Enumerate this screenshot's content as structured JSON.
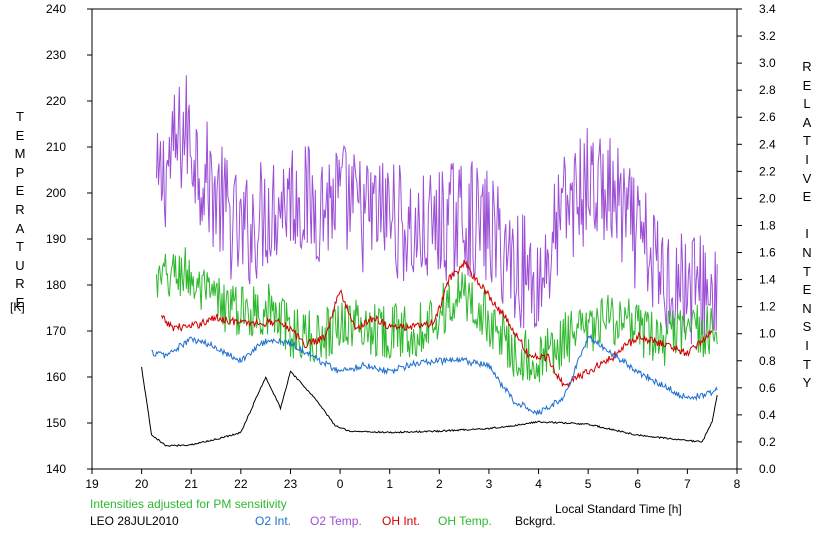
{
  "chart_data": {
    "type": "line",
    "title": "",
    "left_axis_label": "TEMPERATURE",
    "left_axis_unit": "[K]",
    "right_axis_label": "RELATIVE INTENSITY",
    "xlabel": "Local Standard Time [h]",
    "xlim": [
      19,
      8
    ],
    "x_ticks": [
      "19",
      "20",
      "21",
      "22",
      "23",
      "0",
      "1",
      "2",
      "3",
      "4",
      "5",
      "6",
      "7",
      "8"
    ],
    "y_left_lim": [
      140,
      240
    ],
    "y_left_ticks": [
      "140",
      "150",
      "160",
      "170",
      "180",
      "190",
      "200",
      "210",
      "220",
      "230",
      "240"
    ],
    "y_right_lim": [
      0.0,
      3.4
    ],
    "y_right_ticks": [
      "0.0",
      "0.2",
      "0.4",
      "0.6",
      "0.8",
      "1.0",
      "1.2",
      "1.4",
      "1.6",
      "1.8",
      "2.0",
      "2.2",
      "2.4",
      "2.6",
      "2.8",
      "3.0",
      "3.2",
      "3.4"
    ],
    "note": "Intensities adjusted for PM sensitivity",
    "station_date": "LEO 28JUL2010",
    "legend": [
      {
        "name": "O2 Int.",
        "color": "#1e6fd0"
      },
      {
        "name": "O2 Temp.",
        "color": "#9b4fd6"
      },
      {
        "name": "OH Int.",
        "color": "#d00000"
      },
      {
        "name": "OH Temp.",
        "color": "#2eb82e"
      },
      {
        "name": "Bckgrd.",
        "color": "#000000"
      }
    ],
    "series": [
      {
        "name": "O2 Temp.",
        "axis": "left",
        "color": "#9b4fd6",
        "x": [
          20.3,
          20.6,
          20.9,
          21.2,
          21.6,
          22.0,
          22.5,
          23.0,
          23.5,
          24.0,
          24.5,
          25.0,
          25.5,
          26.0,
          26.5,
          27.0,
          27.5,
          28.0,
          28.5,
          29.0,
          29.5,
          30.0,
          30.5,
          31.0,
          31.6
        ],
        "values": [
          200,
          208,
          214,
          205,
          198,
          190,
          196,
          200,
          197,
          199,
          195,
          196,
          190,
          193,
          195,
          192,
          185,
          180,
          196,
          202,
          199,
          190,
          182,
          180,
          178
        ],
        "amplitude": 13
      },
      {
        "name": "OH Temp.",
        "axis": "left",
        "color": "#2eb82e",
        "x": [
          20.3,
          20.6,
          20.9,
          21.2,
          21.6,
          22.0,
          22.5,
          23.0,
          23.5,
          24.0,
          24.5,
          25.0,
          25.5,
          26.0,
          26.5,
          27.0,
          27.5,
          28.0,
          28.5,
          29.0,
          29.5,
          30.0,
          30.5,
          31.0,
          31.6
        ],
        "values": [
          180,
          182,
          183,
          178,
          176,
          174,
          175,
          170,
          168,
          172,
          171,
          170,
          170,
          174,
          178,
          172,
          166,
          163,
          168,
          170,
          173,
          170,
          168,
          170,
          170
        ],
        "amplitude": 6
      },
      {
        "name": "OH Int.",
        "axis": "right",
        "color": "#d00000",
        "x": [
          20.4,
          20.6,
          21.0,
          21.5,
          22.0,
          22.5,
          22.8,
          23.3,
          23.7,
          24.0,
          24.3,
          24.7,
          25.0,
          25.5,
          25.9,
          26.2,
          26.5,
          27.0,
          27.4,
          27.8,
          28.2,
          28.5,
          29.0,
          29.5,
          30.0,
          30.5,
          31.0,
          31.5
        ],
        "values": [
          1.12,
          1.05,
          1.05,
          1.12,
          1.08,
          1.08,
          1.1,
          0.92,
          0.98,
          1.32,
          1.04,
          1.12,
          1.05,
          1.05,
          1.08,
          1.4,
          1.52,
          1.28,
          1.08,
          0.84,
          0.82,
          0.62,
          0.72,
          0.83,
          0.98,
          0.93,
          0.85,
          1.02
        ],
        "amplitude": 0.03
      },
      {
        "name": "O2 Int.",
        "axis": "right",
        "color": "#1e6fd0",
        "x": [
          20.2,
          20.5,
          21.0,
          21.5,
          22.0,
          22.5,
          23.0,
          23.5,
          24.0,
          24.5,
          25.0,
          25.5,
          26.0,
          26.5,
          27.0,
          27.5,
          28.0,
          28.5,
          29.0,
          29.5,
          30.0,
          30.5,
          31.0,
          31.6
        ],
        "values": [
          0.86,
          0.84,
          0.96,
          0.9,
          0.8,
          0.95,
          0.93,
          0.82,
          0.72,
          0.77,
          0.72,
          0.78,
          0.8,
          0.8,
          0.76,
          0.5,
          0.42,
          0.52,
          0.98,
          0.85,
          0.72,
          0.62,
          0.52,
          0.58
        ],
        "amplitude": 0.025
      },
      {
        "name": "Bckgrd.",
        "axis": "right",
        "color": "#000000",
        "x": [
          20.0,
          20.2,
          20.5,
          21.0,
          21.5,
          22.0,
          22.5,
          22.8,
          23.0,
          23.5,
          23.9,
          24.2,
          25.0,
          26.0,
          27.0,
          27.5,
          28.0,
          29.0,
          30.0,
          31.0,
          31.3,
          31.5,
          31.6
        ],
        "values": [
          0.75,
          0.25,
          0.17,
          0.18,
          0.22,
          0.27,
          0.68,
          0.45,
          0.72,
          0.52,
          0.32,
          0.28,
          0.27,
          0.28,
          0.3,
          0.32,
          0.35,
          0.33,
          0.25,
          0.21,
          0.2,
          0.35,
          0.55
        ],
        "amplitude": 0.006
      }
    ]
  }
}
